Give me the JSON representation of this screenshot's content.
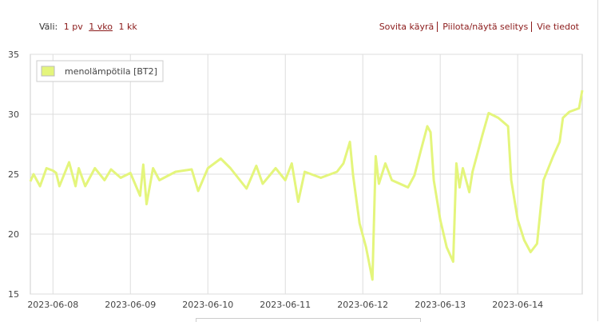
{
  "controls": {
    "range_label": "Väli:",
    "ranges": [
      "1 pv",
      "1 vko",
      "1 kk"
    ],
    "links": [
      "Sovita käyrä",
      "Piilota/näytä selitys",
      "Vie tiedot"
    ]
  },
  "chart_data": {
    "type": "line",
    "x": [
      "2023-06-07T17:00",
      "2023-06-07T18:00",
      "2023-06-07T20:00",
      "2023-06-07T22:00",
      "2023-06-08T00:00",
      "2023-06-08T01:00",
      "2023-06-08T02:00",
      "2023-06-08T05:00",
      "2023-06-08T07:00",
      "2023-06-08T08:00",
      "2023-06-08T10:00",
      "2023-06-08T13:00",
      "2023-06-08T16:00",
      "2023-06-08T18:00",
      "2023-06-08T21:00",
      "2023-06-09T00:00",
      "2023-06-09T03:00",
      "2023-06-09T04:00",
      "2023-06-09T05:00",
      "2023-06-09T07:00",
      "2023-06-09T09:00",
      "2023-06-09T14:00",
      "2023-06-09T19:00",
      "2023-06-09T21:00",
      "2023-06-10T00:00",
      "2023-06-10T04:00",
      "2023-06-10T07:00",
      "2023-06-10T12:00",
      "2023-06-10T15:00",
      "2023-06-10T17:00",
      "2023-06-10T21:00",
      "2023-06-11T00:00",
      "2023-06-11T02:00",
      "2023-06-11T04:00",
      "2023-06-11T06:00",
      "2023-06-11T11:00",
      "2023-06-11T16:00",
      "2023-06-11T18:00",
      "2023-06-11T20:00",
      "2023-06-11T21:00",
      "2023-06-11T23:00",
      "2023-06-12T01:00",
      "2023-06-12T03:00",
      "2023-06-12T04:00",
      "2023-06-12T05:00",
      "2023-06-12T07:00",
      "2023-06-12T09:00",
      "2023-06-12T14:00",
      "2023-06-12T16:00",
      "2023-06-12T18:00",
      "2023-06-12T20:00",
      "2023-06-12T21:00",
      "2023-06-12T22:00",
      "2023-06-13T00:00",
      "2023-06-13T02:00",
      "2023-06-13T04:00",
      "2023-06-13T05:00",
      "2023-06-13T06:00",
      "2023-06-13T07:00",
      "2023-06-13T09:00",
      "2023-06-13T10:00",
      "2023-06-13T12:00",
      "2023-06-13T13:00",
      "2023-06-13T15:00",
      "2023-06-13T18:00",
      "2023-06-13T21:00",
      "2023-06-13T22:00",
      "2023-06-14T00:00",
      "2023-06-14T02:00",
      "2023-06-14T04:00",
      "2023-06-14T06:00",
      "2023-06-14T08:00",
      "2023-06-14T11:00",
      "2023-06-14T13:00",
      "2023-06-14T14:00",
      "2023-06-14T16:00",
      "2023-06-14T19:00",
      "2023-06-14T20:00"
    ],
    "series": [
      {
        "name": "menolämpötila [BT2]",
        "color": "#e4f57c",
        "values": [
          24.4,
          25,
          24,
          25.5,
          25.3,
          25.1,
          24,
          26,
          24,
          25.5,
          24,
          25.5,
          24.5,
          25.4,
          24.7,
          25.1,
          23.2,
          25.8,
          22.5,
          25.5,
          24.5,
          25.2,
          25.4,
          23.6,
          25.5,
          26.3,
          25.5,
          23.8,
          25.7,
          24.2,
          25.5,
          24.5,
          25.9,
          22.7,
          25.2,
          24.7,
          25.2,
          25.9,
          27.7,
          24.9,
          20.9,
          18.9,
          16.2,
          26.5,
          24.2,
          25.9,
          24.5,
          23.9,
          24.9,
          27,
          29,
          28.5,
          24.5,
          21.2,
          18.9,
          17.7,
          25.9,
          23.9,
          25.5,
          23.5,
          25.2,
          27.2,
          28.2,
          30.1,
          29.7,
          29,
          24.5,
          21.2,
          19.5,
          18.5,
          19.2,
          24.5,
          26.5,
          27.7,
          29.7,
          30.2,
          30.5,
          32
        ]
      }
    ],
    "xlim": [
      "2023-06-07T17:00",
      "2023-06-14T20:00"
    ],
    "xticks": [
      "2023-06-08",
      "2023-06-09",
      "2023-06-10",
      "2023-06-11",
      "2023-06-12",
      "2023-06-13",
      "2023-06-14"
    ],
    "ylim": [
      15,
      35
    ],
    "yticks": [
      15,
      20,
      25,
      30,
      35
    ],
    "grid": true,
    "legend": "top-left"
  }
}
